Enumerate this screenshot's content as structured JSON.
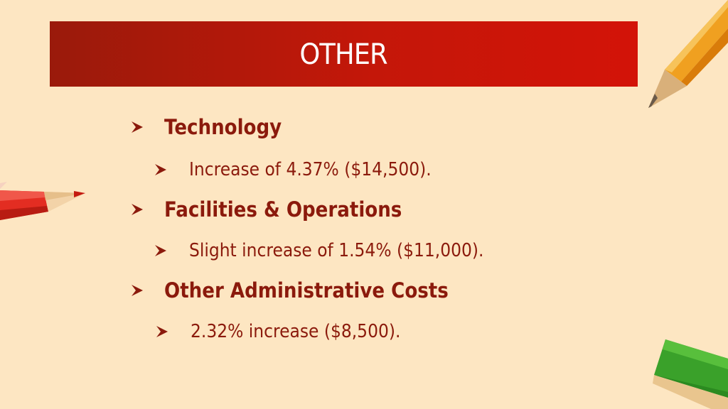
{
  "slide": {
    "title": "OTHER",
    "bullets": [
      {
        "label": "Technology",
        "detail": "Increase of 4.37% ($14,500)."
      },
      {
        "label": "Facilities & Operations",
        "detail": "Slight increase of 1.54% ($11,000)."
      },
      {
        "label": "Other Administrative Costs",
        "detail": "2.32% increase ($8,500)."
      }
    ]
  },
  "colors": {
    "background": "#fde6c2",
    "banner": "#c41709",
    "text": "#8b1a0c"
  },
  "icons": {
    "bullet": "arrow-bullet-icon",
    "pencil_orange": "orange-pencil-icon",
    "pencil_red": "red-pencil-icon",
    "pencil_green": "green-pencil-icon"
  }
}
